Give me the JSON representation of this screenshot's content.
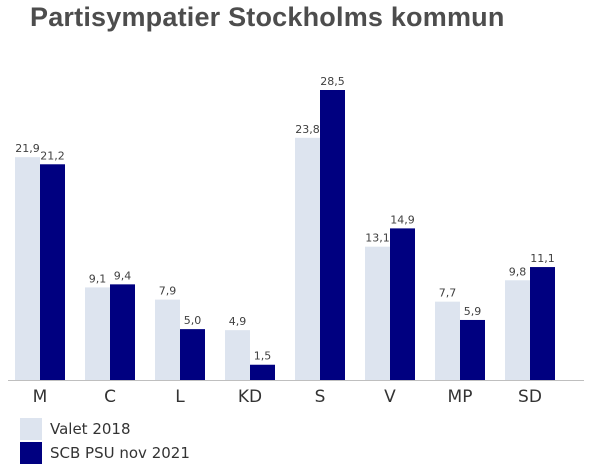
{
  "chart_data": {
    "type": "bar",
    "title": "Partisympatier Stockholms kommun",
    "categories": [
      "M",
      "C",
      "L",
      "KD",
      "S",
      "V",
      "MP",
      "SD"
    ],
    "series": [
      {
        "name": "Valet 2018",
        "values": [
          21.9,
          9.1,
          7.9,
          4.9,
          23.8,
          13.1,
          7.7,
          9.8
        ],
        "labels": [
          "21,9",
          "9,1",
          "7,9",
          "4,9",
          "23,8",
          "13,1",
          "7,7",
          "9,8"
        ],
        "color": "#dde4ef"
      },
      {
        "name": "SCB PSU nov 2021",
        "values": [
          21.2,
          9.4,
          5.0,
          1.5,
          28.5,
          14.9,
          5.9,
          11.1
        ],
        "labels": [
          "21,2",
          "9,4",
          "5,0",
          "1,5",
          "28,5",
          "14,9",
          "5,9",
          "11,1"
        ],
        "color": "#000080"
      }
    ],
    "ylim": [
      0,
      28.5
    ],
    "grid": false,
    "legend_position": "bottom-left"
  }
}
